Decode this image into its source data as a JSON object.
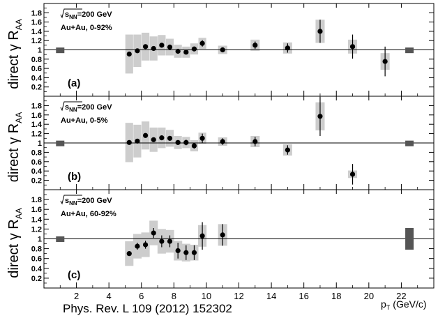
{
  "chart_data": {
    "type": "scatter",
    "x_axis": {
      "label": "p",
      "label_sub": "T",
      "label_unit": "(GeV/c)",
      "range": [
        0,
        24
      ],
      "ticks": [
        "2",
        "4",
        "6",
        "8",
        "10",
        "12",
        "14",
        "16",
        "18",
        "20",
        "22"
      ]
    },
    "y_axis": {
      "label": "direct γ R",
      "label_sub": "AA",
      "range": [
        0,
        2
      ],
      "ticks": [
        "0.2",
        "0.4",
        "0.6",
        "0.8",
        "1",
        "1.2",
        "1.4",
        "1.6",
        "1.8"
      ]
    },
    "reference_line": 1,
    "panels": [
      {
        "label": "(a)",
        "energy_text": "s",
        "energy_sub": "NN",
        "energy_value": "=200 GeV",
        "system": "Au+Au, 0-92%",
        "norm_left": {
          "x": 1.0,
          "low": 0.95,
          "high": 1.05
        },
        "norm_right": {
          "x": 22.5,
          "low": 0.95,
          "high": 1.05
        },
        "points": [
          {
            "x": 5.25,
            "y": 0.91,
            "err": 0.0,
            "sys": 0.42
          },
          {
            "x": 5.75,
            "y": 0.98,
            "err": 0.0,
            "sys": 0.35
          },
          {
            "x": 6.25,
            "y": 1.07,
            "err": 0.0,
            "sys": 0.3
          },
          {
            "x": 6.75,
            "y": 1.03,
            "err": 0.0,
            "sys": 0.26
          },
          {
            "x": 7.25,
            "y": 1.1,
            "err": 0.0,
            "sys": 0.22
          },
          {
            "x": 7.75,
            "y": 1.06,
            "err": 0.0,
            "sys": 0.18
          },
          {
            "x": 8.25,
            "y": 0.97,
            "err": 0.0,
            "sys": 0.14
          },
          {
            "x": 8.75,
            "y": 0.95,
            "err": 0.04,
            "sys": 0.12
          },
          {
            "x": 9.25,
            "y": 1.02,
            "err": 0.05,
            "sys": 0.12
          },
          {
            "x": 9.75,
            "y": 1.14,
            "err": 0.07,
            "sys": 0.12
          },
          {
            "x": 11.0,
            "y": 1.0,
            "err": 0.05,
            "sys": 0.09
          },
          {
            "x": 13.0,
            "y": 1.1,
            "err": 0.08,
            "sys": 0.12
          },
          {
            "x": 15.0,
            "y": 1.04,
            "err": 0.1,
            "sys": 0.12
          },
          {
            "x": 17.0,
            "y": 1.4,
            "err": 0.25,
            "sys": 0.25
          },
          {
            "x": 19.0,
            "y": 1.07,
            "err": 0.26,
            "sys": 0.15
          },
          {
            "x": 21.0,
            "y": 0.75,
            "err": 0.32,
            "sys": 0.18
          }
        ]
      },
      {
        "label": "(b)",
        "energy_text": "s",
        "energy_sub": "NN",
        "energy_value": "=200 GeV",
        "system": "Au+Au, 0-5%",
        "norm_left": {
          "x": 1.0,
          "low": 0.95,
          "high": 1.05
        },
        "norm_right": {
          "x": 22.5,
          "low": 0.95,
          "high": 1.05
        },
        "points": [
          {
            "x": 5.25,
            "y": 1.01,
            "err": 0.0,
            "sys": 0.42
          },
          {
            "x": 5.75,
            "y": 1.04,
            "err": 0.0,
            "sys": 0.35
          },
          {
            "x": 6.25,
            "y": 1.16,
            "err": 0.04,
            "sys": 0.3
          },
          {
            "x": 6.75,
            "y": 1.07,
            "err": 0.04,
            "sys": 0.26
          },
          {
            "x": 7.25,
            "y": 1.11,
            "err": 0.05,
            "sys": 0.22
          },
          {
            "x": 7.75,
            "y": 1.1,
            "err": 0.05,
            "sys": 0.18
          },
          {
            "x": 8.25,
            "y": 1.01,
            "err": 0.05,
            "sys": 0.14
          },
          {
            "x": 8.75,
            "y": 1.01,
            "err": 0.06,
            "sys": 0.12
          },
          {
            "x": 9.25,
            "y": 0.94,
            "err": 0.06,
            "sys": 0.12
          },
          {
            "x": 9.75,
            "y": 1.1,
            "err": 0.1,
            "sys": 0.12
          },
          {
            "x": 11.0,
            "y": 1.03,
            "err": 0.07,
            "sys": 0.09
          },
          {
            "x": 13.0,
            "y": 1.03,
            "err": 0.1,
            "sys": 0.12
          },
          {
            "x": 15.0,
            "y": 0.85,
            "err": 0.1,
            "sys": 0.12
          },
          {
            "x": 17.0,
            "y": 1.57,
            "err": 0.42,
            "sys": 0.3
          },
          {
            "x": 19.0,
            "y": 0.33,
            "err": 0.22,
            "sys": 0.08
          }
        ]
      },
      {
        "label": "(c)",
        "energy_text": "s",
        "energy_sub": "NN",
        "energy_value": "=200 GeV",
        "system": "Au+Au, 60-92%",
        "norm_left": {
          "x": 1.0,
          "low": 0.95,
          "high": 1.05
        },
        "norm_right": {
          "x": 22.5,
          "low": 0.78,
          "high": 1.22
        },
        "points": [
          {
            "x": 5.25,
            "y": 0.7,
            "err": 0.04,
            "sys": 0.25
          },
          {
            "x": 5.75,
            "y": 0.85,
            "err": 0.07,
            "sys": 0.25
          },
          {
            "x": 6.25,
            "y": 0.88,
            "err": 0.08,
            "sys": 0.25
          },
          {
            "x": 6.75,
            "y": 1.12,
            "err": 0.1,
            "sys": 0.25
          },
          {
            "x": 7.25,
            "y": 0.95,
            "err": 0.12,
            "sys": 0.25
          },
          {
            "x": 7.75,
            "y": 0.95,
            "err": 0.12,
            "sys": 0.23
          },
          {
            "x": 8.25,
            "y": 0.76,
            "err": 0.16,
            "sys": 0.2
          },
          {
            "x": 8.75,
            "y": 0.72,
            "err": 0.15,
            "sys": 0.18
          },
          {
            "x": 9.25,
            "y": 0.72,
            "err": 0.15,
            "sys": 0.16
          },
          {
            "x": 9.75,
            "y": 1.06,
            "err": 0.28,
            "sys": 0.22
          },
          {
            "x": 11.0,
            "y": 1.08,
            "err": 0.22,
            "sys": 0.22
          }
        ]
      }
    ]
  },
  "footer": {
    "citation": "Phys. Rev. L 109 (2012) 152302"
  }
}
